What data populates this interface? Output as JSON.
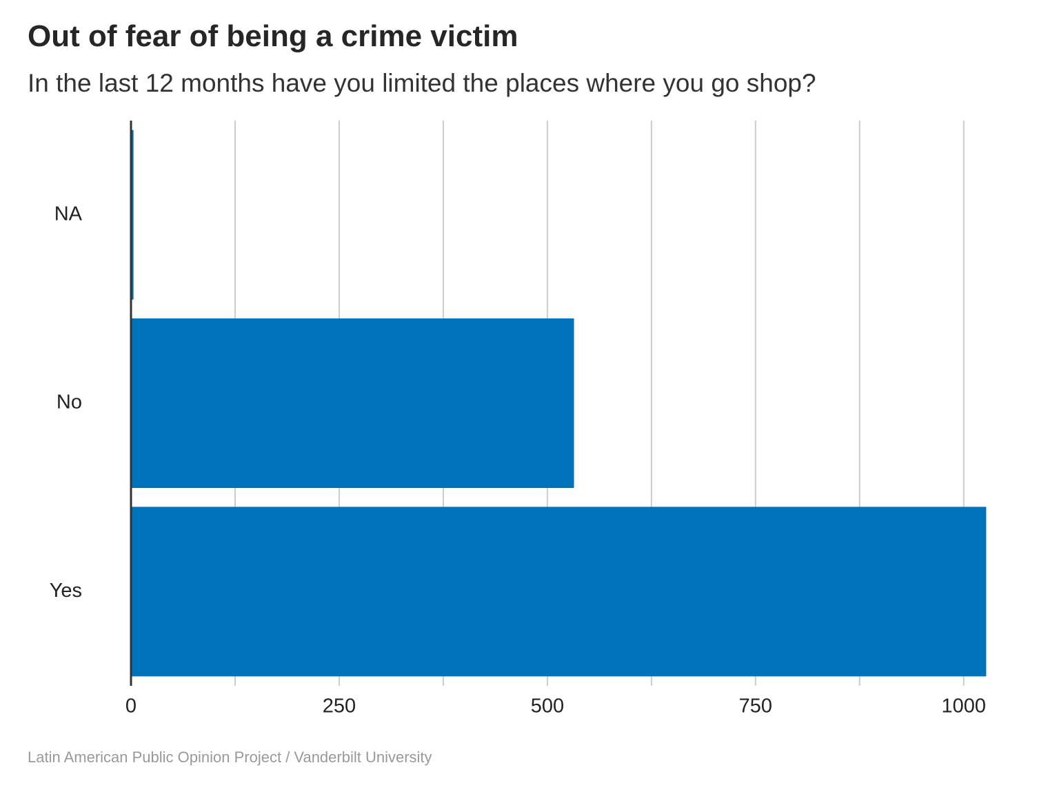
{
  "chart_data": {
    "type": "bar",
    "orientation": "horizontal",
    "title": "Out of fear of being a crime victim",
    "subtitle": "In the last 12 months have you limited the places where you go shop?",
    "categories": [
      "NA",
      "No",
      "Yes"
    ],
    "values": [
      3,
      532,
      1027
    ],
    "xlabel": "",
    "ylabel": "",
    "xlim": [
      0,
      1030
    ],
    "xticks": [
      0,
      250,
      500,
      750,
      1000
    ],
    "xtick_labels": [
      "0",
      "250",
      "500",
      "750",
      "1000"
    ],
    "minor_gridlines": [
      125,
      375,
      625,
      875
    ],
    "grid": true,
    "bar_color": "#0072BB",
    "caption": "Latin American Public Opinion Project / Vanderbilt University"
  }
}
